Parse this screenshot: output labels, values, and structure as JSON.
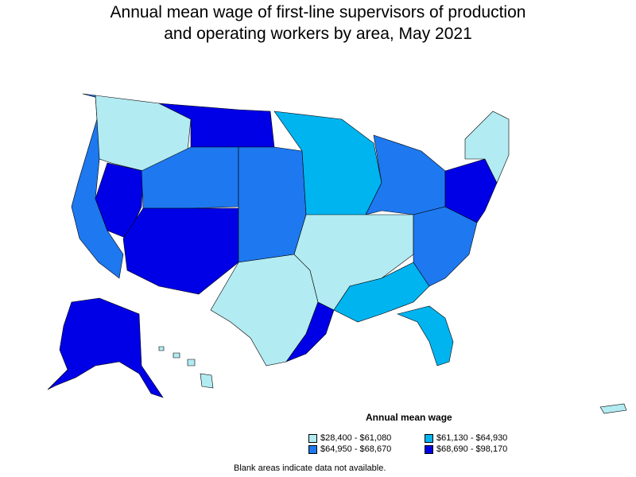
{
  "title_line1": "Annual mean wage of first-line supervisors of production",
  "title_line2": "and operating workers by area, May 2021",
  "legend": {
    "title": "Annual mean wage",
    "items": [
      {
        "label": "$28,400 - $61,080",
        "color": "#b2ebf2"
      },
      {
        "label": "$61,130 - $64,930",
        "color": "#00b4f0"
      },
      {
        "label": "$64,950 - $68,670",
        "color": "#1e78f0"
      },
      {
        "label": "$68,690 - $98,170",
        "color": "#0000e6"
      }
    ]
  },
  "footnote": "Blank areas indicate data not available.",
  "colors": {
    "bin1": "#b2ebf2",
    "bin2": "#00b4f0",
    "bin3": "#1e78f0",
    "bin4": "#0000e6",
    "border": "#000000"
  }
}
